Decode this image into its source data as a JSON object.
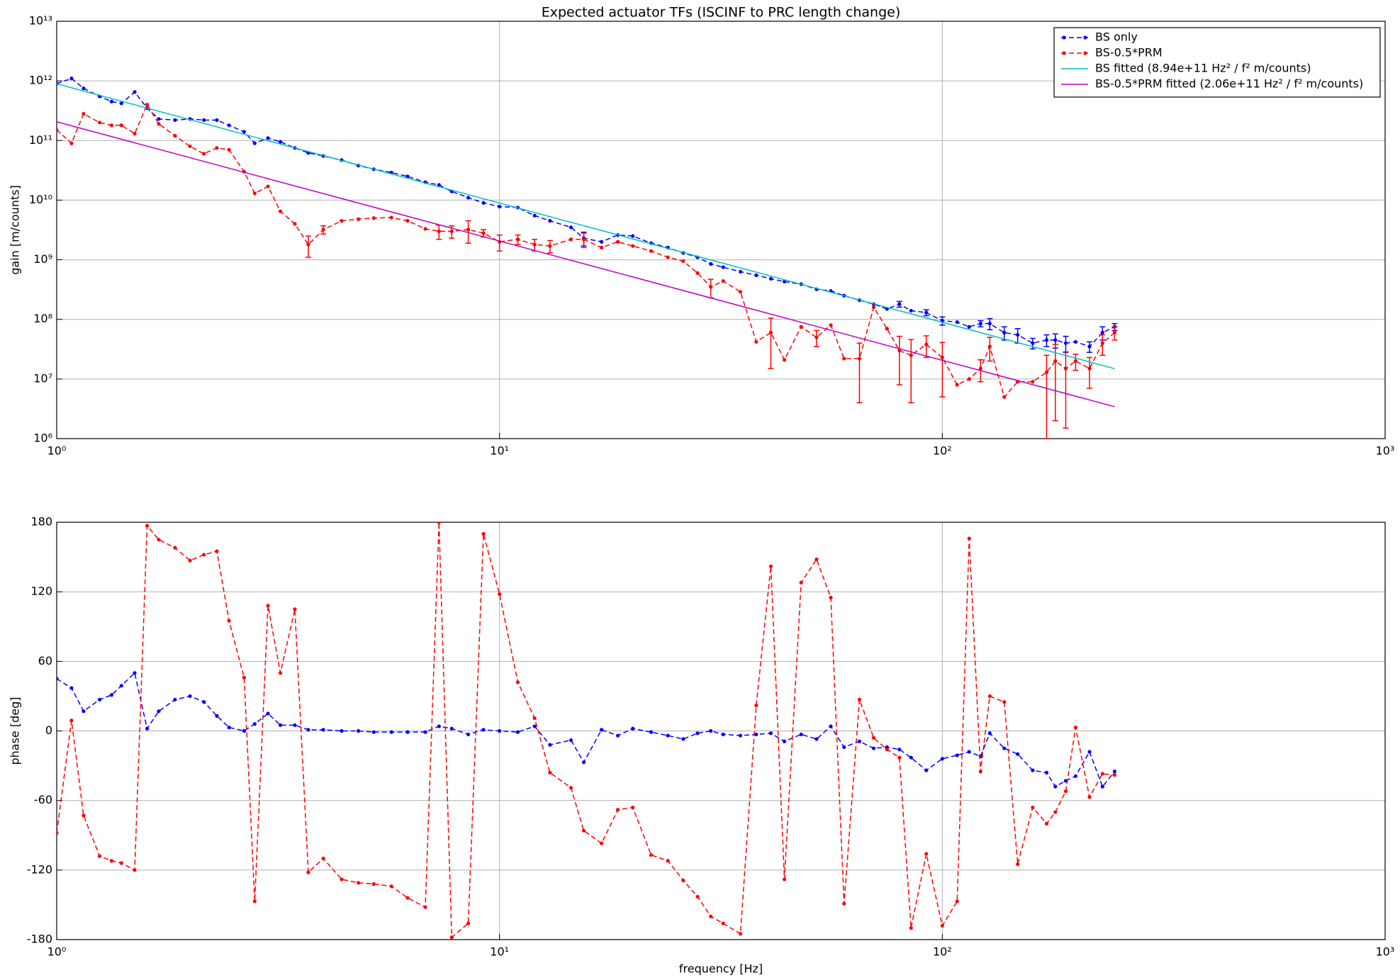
{
  "chart_data": [
    {
      "type": "line",
      "title": "Expected actuator TFs (ISCINF to PRC length change)",
      "ylabel": "gain [m/counts]",
      "xscale": "log",
      "yscale": "log",
      "grid": true,
      "legend": "upper right",
      "xlim": [
        1,
        1000
      ],
      "ylim": [
        1000000.0,
        10000000000000.0
      ],
      "xticks": [
        {
          "value": 1,
          "label": "10⁰"
        },
        {
          "value": 10,
          "label": "10¹"
        },
        {
          "value": 100,
          "label": "10²"
        },
        {
          "value": 1000,
          "label": "10³"
        }
      ],
      "yticks": [
        {
          "value": 1000000.0,
          "label": "10⁶"
        },
        {
          "value": 10000000.0,
          "label": "10⁷"
        },
        {
          "value": 100000000.0,
          "label": "10⁸"
        },
        {
          "value": 1000000000.0,
          "label": "10⁹"
        },
        {
          "value": 10000000000.0,
          "label": "10¹⁰"
        },
        {
          "value": 100000000000.0,
          "label": "10¹¹"
        },
        {
          "value": 1000000000000.0,
          "label": "10¹²"
        },
        {
          "value": 10000000000000.0,
          "label": "10¹³"
        }
      ],
      "x": [
        1.0,
        1.08,
        1.15,
        1.25,
        1.33,
        1.4,
        1.5,
        1.6,
        1.7,
        1.85,
        2.0,
        2.15,
        2.3,
        2.45,
        2.65,
        2.8,
        3.0,
        3.2,
        3.45,
        3.7,
        4.0,
        4.4,
        4.8,
        5.2,
        5.7,
        6.2,
        6.8,
        7.3,
        7.8,
        8.5,
        9.2,
        10,
        11,
        12,
        13,
        14.5,
        15.5,
        17,
        18.5,
        20,
        22,
        24,
        26,
        28,
        30,
        32,
        35,
        38,
        41,
        44,
        48,
        52,
        56,
        60,
        65,
        70,
        75,
        80,
        85,
        92,
        100,
        108,
        115,
        122,
        128,
        138,
        148,
        160,
        172,
        180,
        190,
        200,
        215,
        230,
        245
      ],
      "series": [
        {
          "name": "BS only",
          "color": "#0000ff",
          "linestyle": "dashed",
          "marker": true,
          "values": [
            900000000000.0,
            1100000000000.0,
            750000000000.0,
            550000000000.0,
            450000000000.0,
            420000000000.0,
            650000000000.0,
            350000000000.0,
            230000000000.0,
            220000000000.0,
            230000000000.0,
            220000000000.0,
            220000000000.0,
            180000000000.0,
            140000000000.0,
            90000000000.0,
            110000000000.0,
            95000000000.0,
            75000000000.0,
            62000000000.0,
            55000000000.0,
            47000000000.0,
            38000000000.0,
            33000000000.0,
            29000000000.0,
            25000000000.0,
            20000000000.0,
            18000000000.0,
            14000000000.0,
            11000000000.0,
            9000000000.0,
            7800000000.0,
            7500000000.0,
            5500000000.0,
            4500000000.0,
            3500000000.0,
            2300000000.0,
            2000000000.0,
            2600000000.0,
            2500000000.0,
            1900000000.0,
            1600000000.0,
            1300000000.0,
            1100000000.0,
            850000000.0,
            750000000.0,
            630000000.0,
            550000000.0,
            480000000.0,
            430000000.0,
            390000000.0,
            320000000.0,
            300000000.0,
            250000000.0,
            210000000.0,
            180000000.0,
            150000000.0,
            180000000.0,
            140000000.0,
            130000000.0,
            95000000.0,
            90000000.0,
            75000000.0,
            85000000.0,
            85000000.0,
            60000000.0,
            55000000.0,
            40000000.0,
            45000000.0,
            45000000.0,
            40000000.0,
            42000000.0,
            35000000.0,
            60000000.0,
            75000000.0
          ],
          "errors": [
            null,
            null,
            null,
            null,
            null,
            null,
            null,
            null,
            null,
            null,
            null,
            null,
            null,
            null,
            null,
            null,
            null,
            null,
            null,
            null,
            null,
            null,
            null,
            null,
            null,
            null,
            null,
            null,
            null,
            null,
            null,
            null,
            null,
            null,
            null,
            null,
            600000000.0,
            null,
            null,
            null,
            null,
            null,
            null,
            null,
            null,
            null,
            null,
            null,
            null,
            null,
            null,
            null,
            null,
            null,
            null,
            null,
            null,
            20000000.0,
            null,
            15000000.0,
            15000000.0,
            null,
            null,
            10000000.0,
            18000000.0,
            15000000.0,
            15000000.0,
            8000000.0,
            10000000.0,
            12000000.0,
            12000000.0,
            null,
            7000000.0,
            15000000.0,
            10000000.0
          ]
        },
        {
          "name": "BS-0.5*PRM",
          "color": "#ff0000",
          "linestyle": "dashed",
          "marker": true,
          "values": [
            150000000000.0,
            90000000000.0,
            280000000000.0,
            200000000000.0,
            180000000000.0,
            180000000000.0,
            130000000000.0,
            400000000000.0,
            190000000000.0,
            120000000000.0,
            80000000000.0,
            60000000000.0,
            75000000000.0,
            70000000000.0,
            30000000000.0,
            13000000000.0,
            17000000000.0,
            6500000000.0,
            4000000000.0,
            1800000000.0,
            3200000000.0,
            4500000000.0,
            4800000000.0,
            5000000000.0,
            5100000000.0,
            4500000000.0,
            3300000000.0,
            3000000000.0,
            3000000000.0,
            3200000000.0,
            2800000000.0,
            2000000000.0,
            2200000000.0,
            1800000000.0,
            1700000000.0,
            2200000000.0,
            2200000000.0,
            1600000000.0,
            2000000000.0,
            1700000000.0,
            1400000000.0,
            1100000000.0,
            950000000.0,
            600000000.0,
            350000000.0,
            440000000.0,
            290000000.0,
            42000000.0,
            60000000.0,
            21000000.0,
            75000000.0,
            50000000.0,
            80000000.0,
            22000000.0,
            22000000.0,
            160000000.0,
            70000000.0,
            30000000.0,
            25000000.0,
            38000000.0,
            23000000.0,
            8000000.0,
            10000000.0,
            15000000.0,
            35000000.0,
            5000000.0,
            9000000.0,
            9000000.0,
            13000000.0,
            20000000.0,
            15000000.0,
            20000000.0,
            15000000.0,
            40000000.0,
            60000000.0
          ],
          "errors": [
            null,
            null,
            null,
            null,
            null,
            null,
            null,
            null,
            null,
            null,
            null,
            null,
            null,
            null,
            null,
            null,
            null,
            null,
            null,
            700000000.0,
            500000000.0,
            null,
            null,
            null,
            null,
            null,
            null,
            800000000.0,
            700000000.0,
            1300000000.0,
            400000000.0,
            600000000.0,
            400000000.0,
            400000000.0,
            400000000.0,
            null,
            600000000.0,
            null,
            null,
            null,
            null,
            null,
            null,
            null,
            120000000.0,
            null,
            null,
            null,
            45000000.0,
            null,
            null,
            15000000.0,
            null,
            null,
            18000000.0,
            null,
            null,
            22000000.0,
            21000000.0,
            15000000.0,
            18000000.0,
            null,
            null,
            6000000.0,
            15000000.0,
            null,
            null,
            null,
            12000000.0,
            18000000.0,
            13500000.0,
            6000000.0,
            8000000.0,
            15000000.0,
            15000000.0
          ]
        },
        {
          "name": "BS fitted (8.94e+11 Hz² / f²  m/counts)",
          "color": "#00bfbf",
          "linestyle": "solid",
          "marker": false,
          "x": [
            1,
            245
          ],
          "values": [
            894000000000.0,
            14890000.0
          ]
        },
        {
          "name": "BS-0.5*PRM fitted (2.06e+11 Hz² / f²  m/counts)",
          "color": "#bf00bf",
          "linestyle": "solid",
          "marker": false,
          "x": [
            1,
            245
          ],
          "values": [
            206000000000.0,
            3430000.0
          ]
        }
      ]
    },
    {
      "type": "line",
      "xlabel": "frequency [Hz]",
      "ylabel": "phase [deg]",
      "xscale": "log",
      "yscale": "linear",
      "grid": true,
      "xlim": [
        1,
        1000
      ],
      "ylim": [
        -180,
        180
      ],
      "xticks": [
        {
          "value": 1,
          "label": "10⁰"
        },
        {
          "value": 10,
          "label": "10¹"
        },
        {
          "value": 100,
          "label": "10²"
        },
        {
          "value": 1000,
          "label": "10³"
        }
      ],
      "yticks": [
        -180,
        -120,
        -60,
        0,
        60,
        120,
        180
      ],
      "x": [
        1.0,
        1.08,
        1.15,
        1.25,
        1.33,
        1.4,
        1.5,
        1.6,
        1.7,
        1.85,
        2.0,
        2.15,
        2.3,
        2.45,
        2.65,
        2.8,
        3.0,
        3.2,
        3.45,
        3.7,
        4.0,
        4.4,
        4.8,
        5.2,
        5.7,
        6.2,
        6.8,
        7.3,
        7.8,
        8.5,
        9.2,
        10,
        11,
        12,
        13,
        14.5,
        15.5,
        17,
        18.5,
        20,
        22,
        24,
        26,
        28,
        30,
        32,
        35,
        38,
        41,
        44,
        48,
        52,
        56,
        60,
        65,
        70,
        75,
        80,
        85,
        92,
        100,
        108,
        115,
        122,
        128,
        138,
        148,
        160,
        172,
        180,
        190,
        200,
        215,
        230,
        245
      ],
      "series": [
        {
          "color": "#0000ff",
          "linestyle": "dashed",
          "marker": true,
          "values": [
            45,
            37,
            17,
            27,
            31,
            39,
            50,
            2,
            17,
            27,
            30,
            25,
            13,
            3,
            0,
            6,
            15,
            5,
            5,
            1,
            1,
            0,
            0,
            -1,
            -1,
            -1,
            -1,
            4,
            2,
            -3,
            1,
            0,
            -1,
            4,
            -12,
            -8,
            -27,
            1,
            -4,
            2,
            -1,
            -4,
            -7,
            -2,
            0,
            -3,
            -4,
            -3,
            -2,
            -9,
            -3,
            -7,
            4,
            -14,
            -9,
            -15,
            -14,
            -16,
            -23,
            -34,
            -24,
            -21,
            -18,
            -22,
            -2,
            -15,
            -20,
            -34,
            -36,
            -48,
            -43,
            -39,
            -18,
            -48,
            -35
          ]
        },
        {
          "color": "#ff0000",
          "linestyle": "dashed",
          "marker": true,
          "values": [
            -88,
            9,
            -73,
            -108,
            -112,
            -114,
            -120,
            177,
            165,
            158,
            147,
            152,
            155,
            95,
            46,
            -147,
            108,
            50,
            105,
            -122,
            -110,
            -128,
            -131,
            -132,
            -134,
            -144,
            -152,
            180,
            -178,
            -166,
            170,
            118,
            42,
            11,
            -36,
            -49,
            -86,
            -97,
            -68,
            -66,
            -107,
            -112,
            -129,
            -143,
            -160,
            -166,
            -175,
            22,
            142,
            -128,
            128,
            148,
            115,
            -149,
            27,
            -6,
            -16,
            -23,
            -170,
            -106,
            -168,
            -147,
            166,
            -35,
            30,
            25,
            -115,
            -66,
            -80,
            -70,
            -52,
            3,
            -57,
            -37,
            -38
          ]
        }
      ]
    }
  ]
}
